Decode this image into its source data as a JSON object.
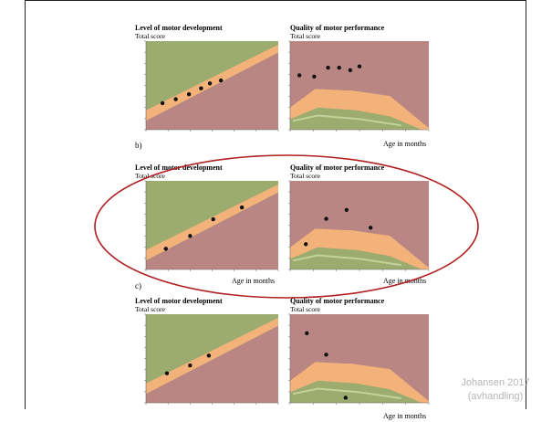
{
  "footer": {
    "caption_line1": "Johansen 2017",
    "caption_line2": "(avhandling)"
  },
  "panel_labels": [
    "b)",
    "c)"
  ],
  "colors": {
    "green_zone": "#9bac6e",
    "orange_zone": "#f2b27a",
    "red_zone": "#b98683",
    "light_band": "#c3d29a",
    "ellipse": "#b02020",
    "point": "#111111"
  },
  "chart_data": [
    {
      "type": "scatter",
      "title": "Level of motor development",
      "subtitle": "Total score",
      "xlabel": "",
      "xlim": [
        0,
        12
      ],
      "ylim": [
        0,
        90
      ],
      "zones": "background bands: green (above), orange (typical), red (below)",
      "points": [
        [
          1.5,
          27
        ],
        [
          2.7,
          31
        ],
        [
          3.9,
          36
        ],
        [
          5.0,
          42
        ],
        [
          5.8,
          47
        ],
        [
          6.8,
          50
        ]
      ]
    },
    {
      "type": "scatter",
      "title": "Quality of motor performance",
      "subtitle": "Total score",
      "xlabel": "Age in months",
      "xlim": [
        0,
        15
      ],
      "ylim": [
        0,
        35
      ],
      "points": [
        [
          1.0,
          21.5
        ],
        [
          2.6,
          21.0
        ],
        [
          4.1,
          24.5
        ],
        [
          5.3,
          24.5
        ],
        [
          6.5,
          23.5
        ],
        [
          7.5,
          25.0
        ]
      ]
    },
    {
      "type": "scatter",
      "title": "Level of motor development",
      "subtitle": "Total score",
      "xlabel": "Age in months",
      "xlim": [
        0,
        12
      ],
      "ylim": [
        0,
        90
      ],
      "points": [
        [
          1.8,
          21
        ],
        [
          4.0,
          34
        ],
        [
          6.1,
          51
        ],
        [
          8.7,
          63
        ]
      ]
    },
    {
      "type": "scatter",
      "title": "Quality of motor performance",
      "subtitle": "Total score",
      "xlabel": "Age in months",
      "xlim": [
        0,
        15
      ],
      "ylim": [
        0,
        35
      ],
      "points": [
        [
          1.7,
          10
        ],
        [
          3.9,
          20
        ],
        [
          6.1,
          23.5
        ],
        [
          8.7,
          16.5
        ]
      ]
    },
    {
      "type": "scatter",
      "title": "Level of motor development",
      "subtitle": "Total score",
      "xlabel": "",
      "xlim": [
        0,
        12
      ],
      "ylim": [
        0,
        90
      ],
      "points": [
        [
          1.9,
          30
        ],
        [
          4.0,
          38
        ],
        [
          5.7,
          48
        ]
      ]
    },
    {
      "type": "scatter",
      "title": "Quality of motor performance",
      "subtitle": "Total score",
      "xlabel": "Age in months",
      "xlim": [
        0,
        15
      ],
      "ylim": [
        0,
        35
      ],
      "points": [
        [
          1.8,
          27.5
        ],
        [
          3.9,
          19
        ],
        [
          6.0,
          2
        ]
      ]
    }
  ]
}
